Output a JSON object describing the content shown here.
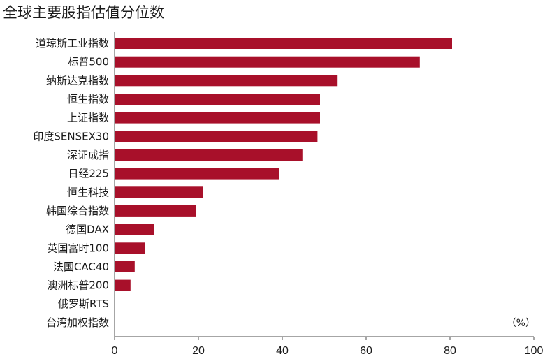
{
  "chart_data": {
    "type": "bar",
    "orientation": "horizontal",
    "title": "全球主要股指估值分位数",
    "unit_label": "（%）",
    "categories": [
      "道琼斯工业指数",
      "标普500",
      "纳斯达克指数",
      "恒生指数",
      "上证指数",
      "印度SENSEX30",
      "深证成指",
      "日经225",
      "恒生科技",
      "韩国综合指数",
      "德国DAX",
      "英国富时100",
      "法国CAC40",
      "澳洲标普200",
      "俄罗斯RTS",
      "台湾加权指数"
    ],
    "values": [
      80.5,
      72.8,
      53.2,
      49.0,
      49.0,
      48.4,
      44.8,
      39.3,
      21.0,
      19.5,
      9.4,
      7.3,
      4.8,
      3.8,
      0,
      0
    ],
    "xlim": [
      0,
      100
    ],
    "xticks": [
      "0",
      "20",
      "40",
      "60",
      "80",
      "100"
    ],
    "bar_color": "#a8102a",
    "grid": false
  }
}
